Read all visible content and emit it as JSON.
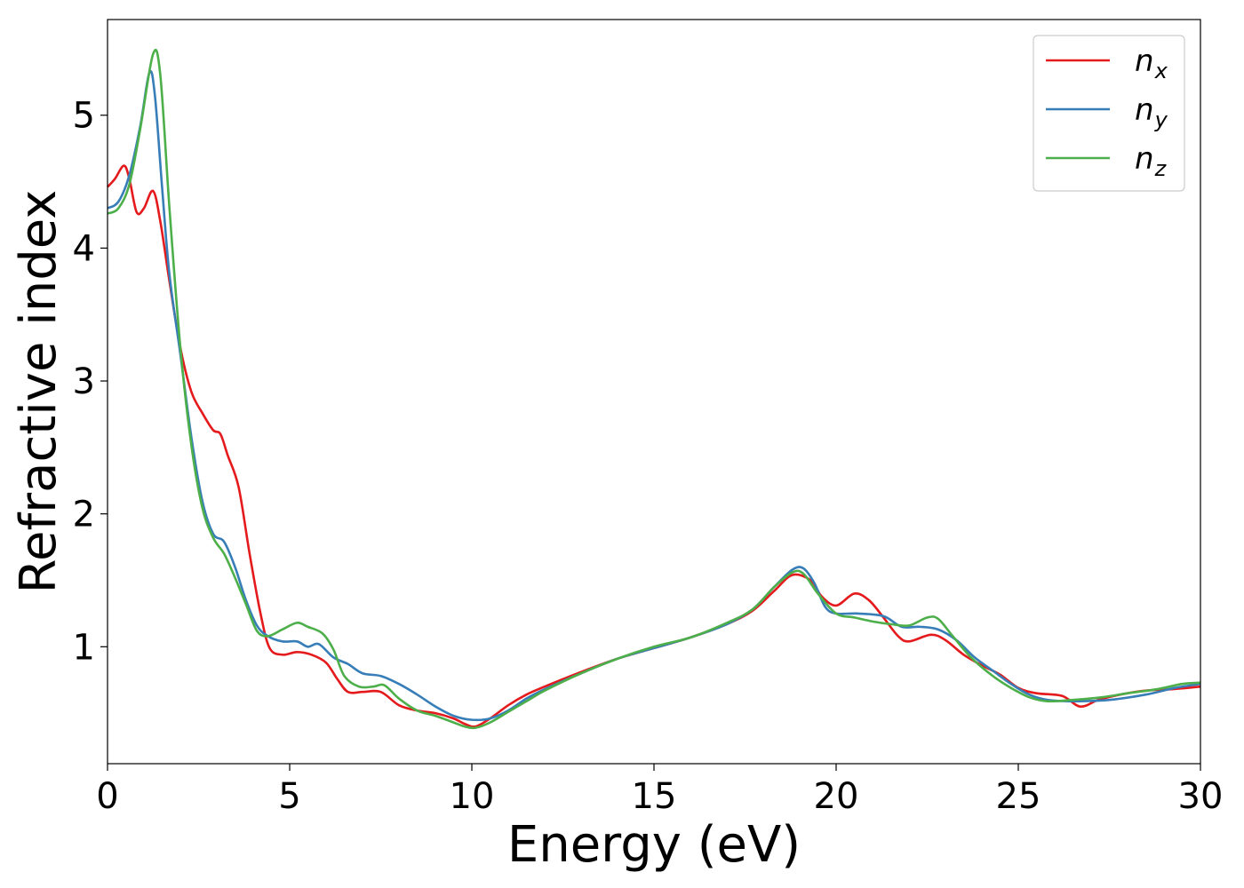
{
  "chart_data": {
    "type": "line",
    "title": "",
    "xlabel": "Energy (eV)",
    "ylabel": "Refractive index",
    "xlim": [
      0,
      30
    ],
    "ylim": [
      0.12,
      5.72
    ],
    "xticks": [
      0,
      5,
      10,
      15,
      20,
      25,
      30
    ],
    "yticks": [
      1,
      2,
      3,
      4,
      5
    ],
    "grid": false,
    "legend_position": "top-right",
    "series": [
      {
        "name": "n_x",
        "label_main": "n",
        "label_sub": "x",
        "color": "#e41a1c",
        "points": [
          [
            0,
            4.46
          ],
          [
            0.2,
            4.52
          ],
          [
            0.45,
            4.62
          ],
          [
            0.6,
            4.52
          ],
          [
            0.8,
            4.27
          ],
          [
            1.0,
            4.3
          ],
          [
            1.25,
            4.43
          ],
          [
            1.45,
            4.2
          ],
          [
            1.7,
            3.75
          ],
          [
            2.0,
            3.25
          ],
          [
            2.3,
            2.92
          ],
          [
            2.6,
            2.76
          ],
          [
            2.9,
            2.63
          ],
          [
            3.1,
            2.6
          ],
          [
            3.3,
            2.44
          ],
          [
            3.6,
            2.2
          ],
          [
            3.9,
            1.7
          ],
          [
            4.2,
            1.25
          ],
          [
            4.45,
            0.99
          ],
          [
            4.8,
            0.94
          ],
          [
            5.2,
            0.96
          ],
          [
            5.6,
            0.94
          ],
          [
            6.0,
            0.88
          ],
          [
            6.3,
            0.76
          ],
          [
            6.6,
            0.66
          ],
          [
            7.0,
            0.66
          ],
          [
            7.5,
            0.66
          ],
          [
            8.0,
            0.56
          ],
          [
            8.5,
            0.52
          ],
          [
            9.0,
            0.5
          ],
          [
            9.5,
            0.46
          ],
          [
            9.8,
            0.42
          ],
          [
            10.1,
            0.4
          ],
          [
            10.5,
            0.46
          ],
          [
            11.0,
            0.56
          ],
          [
            11.5,
            0.64
          ],
          [
            12.0,
            0.7
          ],
          [
            13.0,
            0.81
          ],
          [
            14.0,
            0.91
          ],
          [
            15.0,
            0.99
          ],
          [
            16.0,
            1.07
          ],
          [
            17.0,
            1.17
          ],
          [
            17.7,
            1.27
          ],
          [
            18.3,
            1.42
          ],
          [
            18.8,
            1.54
          ],
          [
            19.3,
            1.5
          ],
          [
            19.6,
            1.38
          ],
          [
            20.0,
            1.31
          ],
          [
            20.5,
            1.4
          ],
          [
            20.9,
            1.35
          ],
          [
            21.3,
            1.22
          ],
          [
            21.7,
            1.08
          ],
          [
            22.0,
            1.04
          ],
          [
            22.6,
            1.09
          ],
          [
            23.0,
            1.05
          ],
          [
            23.5,
            0.94
          ],
          [
            24.0,
            0.86
          ],
          [
            24.5,
            0.79
          ],
          [
            25.0,
            0.69
          ],
          [
            25.5,
            0.65
          ],
          [
            26.2,
            0.63
          ],
          [
            26.7,
            0.55
          ],
          [
            27.2,
            0.6
          ],
          [
            27.8,
            0.64
          ],
          [
            28.5,
            0.67
          ],
          [
            29.2,
            0.68
          ],
          [
            30.0,
            0.7
          ]
        ]
      },
      {
        "name": "n_y",
        "label_main": "n",
        "label_sub": "y",
        "color": "#377eb8",
        "points": [
          [
            0,
            4.3
          ],
          [
            0.3,
            4.35
          ],
          [
            0.6,
            4.55
          ],
          [
            0.9,
            4.92
          ],
          [
            1.15,
            5.32
          ],
          [
            1.3,
            5.15
          ],
          [
            1.5,
            4.45
          ],
          [
            1.7,
            3.8
          ],
          [
            2.0,
            3.2
          ],
          [
            2.3,
            2.58
          ],
          [
            2.6,
            2.1
          ],
          [
            2.9,
            1.85
          ],
          [
            3.2,
            1.79
          ],
          [
            3.5,
            1.6
          ],
          [
            3.8,
            1.35
          ],
          [
            4.1,
            1.16
          ],
          [
            4.4,
            1.08
          ],
          [
            4.8,
            1.04
          ],
          [
            5.2,
            1.04
          ],
          [
            5.5,
            1.0
          ],
          [
            5.8,
            1.02
          ],
          [
            6.2,
            0.92
          ],
          [
            6.6,
            0.87
          ],
          [
            7.0,
            0.8
          ],
          [
            7.5,
            0.78
          ],
          [
            8.0,
            0.72
          ],
          [
            8.5,
            0.64
          ],
          [
            9.0,
            0.55
          ],
          [
            9.5,
            0.48
          ],
          [
            10.0,
            0.45
          ],
          [
            10.5,
            0.46
          ],
          [
            11.0,
            0.52
          ],
          [
            11.5,
            0.61
          ],
          [
            12.0,
            0.68
          ],
          [
            13.0,
            0.8
          ],
          [
            14.0,
            0.91
          ],
          [
            15.0,
            0.99
          ],
          [
            16.0,
            1.07
          ],
          [
            17.0,
            1.17
          ],
          [
            17.7,
            1.28
          ],
          [
            18.3,
            1.45
          ],
          [
            18.8,
            1.58
          ],
          [
            19.1,
            1.59
          ],
          [
            19.4,
            1.48
          ],
          [
            19.7,
            1.3
          ],
          [
            20.0,
            1.25
          ],
          [
            20.6,
            1.25
          ],
          [
            21.3,
            1.23
          ],
          [
            21.8,
            1.15
          ],
          [
            22.3,
            1.15
          ],
          [
            22.8,
            1.13
          ],
          [
            23.3,
            1.05
          ],
          [
            23.8,
            0.92
          ],
          [
            24.3,
            0.82
          ],
          [
            24.8,
            0.72
          ],
          [
            25.3,
            0.64
          ],
          [
            25.8,
            0.6
          ],
          [
            26.5,
            0.59
          ],
          [
            27.5,
            0.6
          ],
          [
            28.5,
            0.64
          ],
          [
            29.3,
            0.69
          ],
          [
            30.0,
            0.72
          ]
        ]
      },
      {
        "name": "n_z",
        "label_main": "n",
        "label_sub": "z",
        "color": "#4daf4a",
        "points": [
          [
            0,
            4.26
          ],
          [
            0.3,
            4.3
          ],
          [
            0.6,
            4.48
          ],
          [
            0.9,
            4.9
          ],
          [
            1.25,
            5.46
          ],
          [
            1.45,
            5.3
          ],
          [
            1.7,
            4.3
          ],
          [
            2.0,
            3.25
          ],
          [
            2.3,
            2.52
          ],
          [
            2.6,
            2.05
          ],
          [
            2.9,
            1.82
          ],
          [
            3.2,
            1.7
          ],
          [
            3.5,
            1.52
          ],
          [
            3.8,
            1.32
          ],
          [
            4.1,
            1.12
          ],
          [
            4.4,
            1.08
          ],
          [
            4.8,
            1.13
          ],
          [
            5.2,
            1.18
          ],
          [
            5.5,
            1.15
          ],
          [
            5.9,
            1.1
          ],
          [
            6.2,
            0.98
          ],
          [
            6.5,
            0.78
          ],
          [
            6.9,
            0.7
          ],
          [
            7.3,
            0.7
          ],
          [
            7.6,
            0.71
          ],
          [
            8.0,
            0.61
          ],
          [
            8.5,
            0.52
          ],
          [
            9.0,
            0.48
          ],
          [
            9.5,
            0.43
          ],
          [
            9.8,
            0.4
          ],
          [
            10.1,
            0.39
          ],
          [
            10.5,
            0.43
          ],
          [
            11.0,
            0.51
          ],
          [
            11.5,
            0.59
          ],
          [
            12.0,
            0.67
          ],
          [
            13.0,
            0.8
          ],
          [
            14.0,
            0.91
          ],
          [
            15.0,
            1.0
          ],
          [
            16.0,
            1.07
          ],
          [
            17.0,
            1.18
          ],
          [
            17.7,
            1.28
          ],
          [
            18.3,
            1.45
          ],
          [
            18.8,
            1.56
          ],
          [
            19.1,
            1.55
          ],
          [
            19.5,
            1.4
          ],
          [
            20.0,
            1.25
          ],
          [
            20.5,
            1.22
          ],
          [
            21.0,
            1.19
          ],
          [
            21.5,
            1.17
          ],
          [
            22.0,
            1.16
          ],
          [
            22.5,
            1.22
          ],
          [
            22.8,
            1.21
          ],
          [
            23.2,
            1.08
          ],
          [
            23.7,
            0.92
          ],
          [
            24.3,
            0.78
          ],
          [
            24.8,
            0.69
          ],
          [
            25.3,
            0.62
          ],
          [
            25.8,
            0.59
          ],
          [
            26.5,
            0.6
          ],
          [
            27.3,
            0.62
          ],
          [
            28.0,
            0.65
          ],
          [
            28.8,
            0.68
          ],
          [
            29.5,
            0.72
          ],
          [
            30.0,
            0.73
          ]
        ]
      }
    ]
  }
}
